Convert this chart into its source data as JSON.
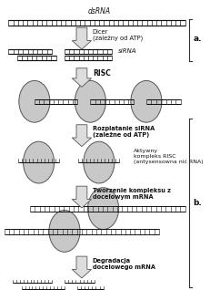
{
  "dsRNA_label": "dsRNA",
  "siRNA_label": "siRNA",
  "arrow1_label": "Dicer\n(zależny od ATP)",
  "arrow2_label": "RISC",
  "arrow3_label": "Rozplatanie siRNA\n(zależne od ATP)",
  "arrow4_label": "Aktywny\nkompleks RISC\n(antysensowna nić RNA)",
  "arrow5_label": "Tworzenie kompleksu z\ndocelowym mRNA",
  "arrow6_label": "Degradacja\ndocelowego mRNA",
  "bracket_a": "a.",
  "bracket_b": "b.",
  "circle_color": "#c8c8c8",
  "circle_edge": "#555555",
  "rna_color": "#111111",
  "text_color": "#111111",
  "arrow_fc": "#dddddd",
  "arrow_ec": "#555555"
}
